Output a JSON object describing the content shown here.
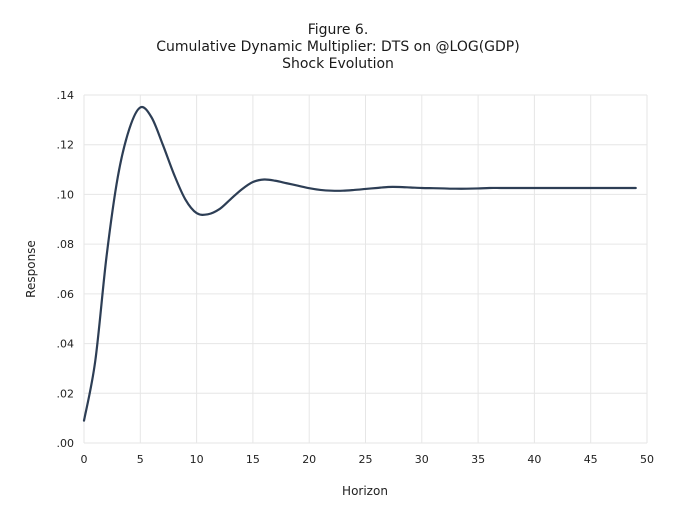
{
  "chart_data": {
    "type": "line",
    "title": "Figure 6.",
    "subtitle": "Cumulative Dynamic Multiplier: DTS on @LOG(GDP)",
    "subtitle2": "Shock Evolution",
    "xlabel": "Horizon",
    "ylabel": "Response",
    "xlim": [
      0,
      50
    ],
    "ylim": [
      0,
      0.14
    ],
    "x_ticks": [
      "0",
      "5",
      "10",
      "15",
      "20",
      "25",
      "30",
      "35",
      "40",
      "45",
      "50"
    ],
    "y_ticks": [
      ".00",
      ".02",
      ".04",
      ".06",
      ".08",
      ".10",
      ".12",
      ".14"
    ],
    "grid": true,
    "line_color": "#2d3e55",
    "series": [
      {
        "x": [
          0,
          1,
          2,
          3,
          4,
          5,
          6,
          7,
          8,
          9,
          10,
          11,
          12,
          13,
          14,
          15,
          16,
          17,
          18,
          19,
          20,
          21,
          22,
          23,
          24,
          25,
          26,
          27,
          28,
          29,
          30,
          31,
          32,
          33,
          34,
          35,
          36,
          37,
          38,
          39,
          40,
          41,
          42,
          43,
          44,
          45,
          46,
          47,
          48,
          49
        ],
        "values": [
          0.009,
          0.033,
          0.075,
          0.107,
          0.126,
          0.135,
          0.131,
          0.12,
          0.108,
          0.098,
          0.0925,
          0.092,
          0.094,
          0.098,
          0.102,
          0.105,
          0.106,
          0.1055,
          0.1045,
          0.1035,
          0.1025,
          0.1018,
          0.1015,
          0.1015,
          0.1018,
          0.1022,
          0.1026,
          0.103,
          0.103,
          0.1028,
          0.1026,
          0.1025,
          0.1024,
          0.1023,
          0.1023,
          0.1024,
          0.1026,
          0.1026,
          0.1026,
          0.1026,
          0.1026,
          0.1026,
          0.1026,
          0.1026,
          0.1026,
          0.1026,
          0.1026,
          0.1026,
          0.1026,
          0.1026
        ]
      }
    ]
  }
}
